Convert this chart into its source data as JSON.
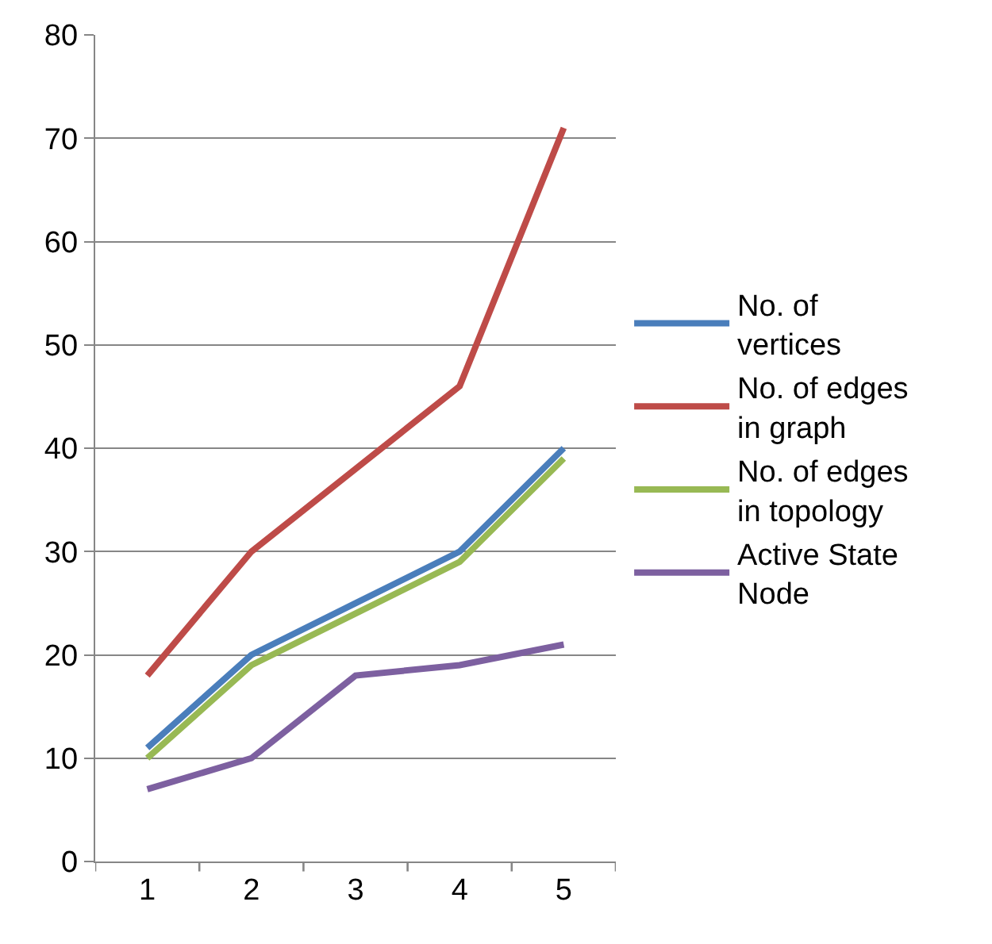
{
  "chart_data": {
    "type": "line",
    "categories": [
      "1",
      "2",
      "3",
      "4",
      "5"
    ],
    "series": [
      {
        "name": "No. of vertices",
        "color": "#4a7ebb",
        "values": [
          11,
          20,
          25,
          30,
          40
        ]
      },
      {
        "name": "No. of edges in graph",
        "color": "#be4b48",
        "values": [
          18,
          30,
          38,
          46,
          71
        ]
      },
      {
        "name": "No. of edges in topology",
        "color": "#98b954",
        "values": [
          10,
          19,
          24,
          29,
          39
        ]
      },
      {
        "name": "Active State Node",
        "color": "#7d60a0",
        "values": [
          7,
          10,
          18,
          19,
          21
        ]
      }
    ],
    "ylim": [
      0,
      80
    ],
    "yticks": [
      0,
      10,
      20,
      30,
      40,
      50,
      60,
      70,
      80
    ],
    "grid": "y",
    "legend": "right",
    "marker": "none",
    "line_style": "solid"
  }
}
